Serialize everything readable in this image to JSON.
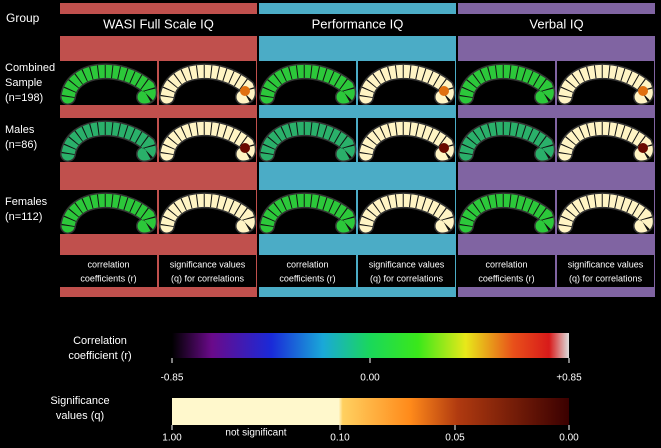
{
  "row_header": "Group",
  "columns": [
    {
      "title": "WASI Full Scale IQ"
    },
    {
      "title": "Performance IQ"
    },
    {
      "title": "Verbal IQ"
    }
  ],
  "groups": [
    {
      "lines": [
        "Combined",
        "Sample",
        "(n=198)"
      ]
    },
    {
      "lines": [
        "Males",
        "(n=86)"
      ]
    },
    {
      "lines": [
        "Females",
        "(n=112)"
      ]
    }
  ],
  "cell_labels": [
    {
      "lines": [
        "correlation",
        "coefficients (r)"
      ]
    },
    {
      "lines": [
        "significance values",
        "(q) for correlations"
      ]
    }
  ],
  "correlation_scale": {
    "title": [
      "Correlation",
      "coefficient (r)"
    ],
    "ticks": [
      "-0.85",
      "0.00",
      "+0.85"
    ]
  },
  "significance_scale": {
    "title": [
      "Significance",
      "values (q)"
    ],
    "ticks": [
      "1.00",
      "0.10",
      "0.05",
      "0.00"
    ],
    "note": "not significant"
  }
}
